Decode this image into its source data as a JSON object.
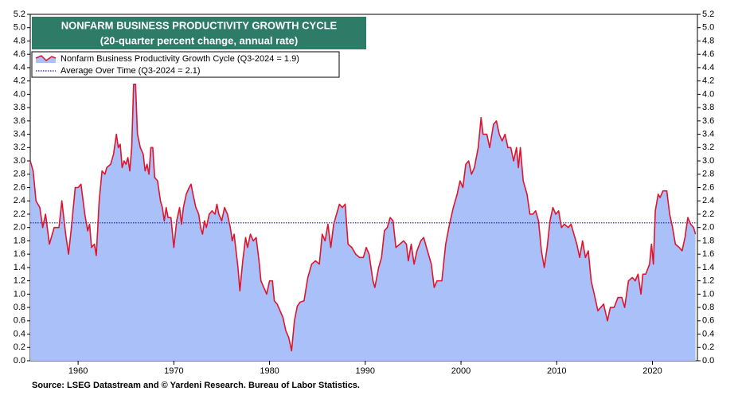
{
  "chart_data": {
    "type": "area",
    "title": "NONFARM BUSINESS PRODUCTIVITY GROWTH CYCLE",
    "subtitle": "(20-quarter percent change, annual rate)",
    "source": "Source: LSEG Datastream and © Yardeni Research. Bureau of Labor Statistics.",
    "x": [
      1955,
      1955.3,
      1955.6,
      1956,
      1956.3,
      1956.6,
      1957,
      1957.5,
      1958,
      1958.3,
      1958.7,
      1959,
      1959.3,
      1959.7,
      1960,
      1960.3,
      1960.7,
      1961,
      1961.2,
      1961.4,
      1961.7,
      1961.9,
      1962.2,
      1962.5,
      1962.8,
      1963,
      1963.4,
      1963.7,
      1964,
      1964.2,
      1964.4,
      1964.6,
      1964.8,
      1965,
      1965.2,
      1965.4,
      1965.6,
      1965.8,
      1966,
      1966.2,
      1966.5,
      1966.8,
      1967,
      1967.2,
      1967.4,
      1967.6,
      1967.8,
      1968,
      1968.3,
      1968.6,
      1968.8,
      1969,
      1969.2,
      1969.4,
      1969.7,
      1970,
      1970.3,
      1970.6,
      1970.8,
      1971,
      1971.3,
      1971.6,
      1971.8,
      1972,
      1972.3,
      1972.6,
      1972.8,
      1973,
      1973.2,
      1973.4,
      1973.7,
      1974,
      1974.3,
      1974.5,
      1974.7,
      1975,
      1975.3,
      1975.6,
      1975.9,
      1976.1,
      1976.3,
      1976.7,
      1976.9,
      1977.2,
      1977.5,
      1977.7,
      1978,
      1978.3,
      1978.6,
      1978.9,
      1979.1,
      1979.4,
      1979.7,
      1980,
      1980.3,
      1980.5,
      1980.8,
      1981.1,
      1981.4,
      1981.7,
      1982,
      1982.3,
      1982.6,
      1982.9,
      1983.2,
      1983.6,
      1984,
      1984.4,
      1984.8,
      1985.2,
      1985.5,
      1985.8,
      1986.1,
      1986.4,
      1986.7,
      1987,
      1987.3,
      1987.6,
      1987.9,
      1988.2,
      1988.6,
      1989,
      1989.4,
      1989.8,
      1990.1,
      1990.4,
      1990.8,
      1991,
      1991.4,
      1991.7,
      1992,
      1992.3,
      1992.6,
      1992.9,
      1993.2,
      1993.6,
      1994,
      1994.3,
      1994.5,
      1994.8,
      1995.1,
      1995.4,
      1995.8,
      1996.1,
      1996.5,
      1996.9,
      1997.2,
      1997.5,
      1998,
      1998.4,
      1998.8,
      1999.2,
      1999.6,
      1999.9,
      2000.2,
      2000.5,
      2000.8,
      2001.1,
      2001.4,
      2001.8,
      2002.1,
      2002.3,
      2002.7,
      2003,
      2003.4,
      2003.7,
      2004,
      2004.3,
      2004.6,
      2004.9,
      2005.2,
      2005.5,
      2005.8,
      2006,
      2006.2,
      2006.5,
      2006.9,
      2007.2,
      2007.5,
      2007.8,
      2008.1,
      2008.4,
      2008.7,
      2009,
      2009.3,
      2009.6,
      2009.9,
      2010.2,
      2010.5,
      2010.8,
      2011.2,
      2011.5,
      2011.8,
      2012.1,
      2012.4,
      2012.7,
      2013,
      2013.3,
      2013.6,
      2014,
      2014.3,
      2014.6,
      2014.9,
      2015.3,
      2015.6,
      2016,
      2016.4,
      2016.8,
      2017.1,
      2017.5,
      2017.9,
      2018.2,
      2018.5,
      2018.8,
      2019,
      2019.3,
      2019.7,
      2019.9,
      2020.1,
      2020.3,
      2020.6,
      2020.8,
      2021.1,
      2021.5,
      2021.8,
      2022.1,
      2022.4,
      2022.8,
      2023.1,
      2023.4,
      2023.7,
      2024,
      2024.3,
      2024.5
    ],
    "series": [
      {
        "name": "Nonfarm Business Productivity Growth Cycle (Q3-2024 = 1.9)",
        "color": "#e0142c",
        "fill": "#a9c0f9",
        "values": [
          3.0,
          2.85,
          2.4,
          2.3,
          2.0,
          2.2,
          1.75,
          2.0,
          2.0,
          2.4,
          1.9,
          1.6,
          2.0,
          2.6,
          2.6,
          2.65,
          2.2,
          1.95,
          2.05,
          1.7,
          1.75,
          1.58,
          2.4,
          2.85,
          2.8,
          2.9,
          2.95,
          3.1,
          3.4,
          3.2,
          3.25,
          2.9,
          3.0,
          2.95,
          3.05,
          2.85,
          3.2,
          4.15,
          4.15,
          3.4,
          3.2,
          3.1,
          2.85,
          2.95,
          2.8,
          3.2,
          3.2,
          2.75,
          2.7,
          2.4,
          2.3,
          2.1,
          2.3,
          2.15,
          2.15,
          1.7,
          2.1,
          2.3,
          2.05,
          2.3,
          2.5,
          2.6,
          2.65,
          2.5,
          2.3,
          2.2,
          2.0,
          1.9,
          2.1,
          2.0,
          2.2,
          2.25,
          2.2,
          2.35,
          2.2,
          2.1,
          2.3,
          2.2,
          2.0,
          1.8,
          1.9,
          1.4,
          1.05,
          1.5,
          1.85,
          1.7,
          1.9,
          1.8,
          1.85,
          1.5,
          1.2,
          1.1,
          1.0,
          1.2,
          1.2,
          0.9,
          0.85,
          0.75,
          0.65,
          0.45,
          0.35,
          0.15,
          0.6,
          0.82,
          0.88,
          0.9,
          1.25,
          1.45,
          1.5,
          1.45,
          1.9,
          1.8,
          2.05,
          1.7,
          2.05,
          2.2,
          2.35,
          2.3,
          2.35,
          1.75,
          1.7,
          1.6,
          1.55,
          1.55,
          1.7,
          1.6,
          1.2,
          1.1,
          1.4,
          1.55,
          1.95,
          2.0,
          2.15,
          2.1,
          1.7,
          1.75,
          1.8,
          1.75,
          1.5,
          1.75,
          1.45,
          1.65,
          1.8,
          1.85,
          1.65,
          1.45,
          1.1,
          1.2,
          1.2,
          1.75,
          2.05,
          2.3,
          2.5,
          2.7,
          2.6,
          2.95,
          3.0,
          2.8,
          2.9,
          3.2,
          3.65,
          3.4,
          3.4,
          3.2,
          3.55,
          3.6,
          3.4,
          3.3,
          3.4,
          3.2,
          3.2,
          3.0,
          3.2,
          2.9,
          3.2,
          2.7,
          2.5,
          2.2,
          2.2,
          2.25,
          2.1,
          1.65,
          1.4,
          1.7,
          2.1,
          2.3,
          2.2,
          2.25,
          2.0,
          2.05,
          2.0,
          2.05,
          1.9,
          1.75,
          1.55,
          1.8,
          1.55,
          1.65,
          1.2,
          0.95,
          0.75,
          0.8,
          0.85,
          0.6,
          0.8,
          0.8,
          0.95,
          0.95,
          0.8,
          1.2,
          1.25,
          1.2,
          1.3,
          1.0,
          1.3,
          1.3,
          1.45,
          1.75,
          1.45,
          2.25,
          2.5,
          2.45,
          2.55,
          2.55,
          2.2,
          2.0,
          1.75,
          1.7,
          1.65,
          1.85,
          2.15,
          2.05,
          2.0,
          1.9
        ]
      }
    ],
    "average": {
      "name": "Average Over Time (Q3-2024 = 2.1)",
      "color": "#1a1ab8",
      "value": 2.07
    },
    "xlim": [
      1955,
      2024.7
    ],
    "xticks": [
      1960,
      1970,
      1980,
      1990,
      2000,
      2010,
      2020
    ],
    "ylim": [
      0,
      5.2
    ],
    "yticks": [
      {
        "value": 0,
        "label": "0.0"
      },
      0.2,
      0.4,
      0.6,
      0.8,
      {
        "value": 1,
        "label": "1.0"
      },
      1.2,
      1.4,
      1.6,
      1.8,
      {
        "value": 2,
        "label": "2.0"
      },
      2.2,
      2.4,
      2.6,
      2.8,
      {
        "value": 3,
        "label": "3.0"
      },
      3.2,
      3.4,
      3.6,
      3.8,
      {
        "value": 4,
        "label": "4.0"
      },
      4.2,
      4.4,
      4.6,
      4.8,
      {
        "value": 5,
        "label": "5.0"
      },
      5.2
    ],
    "y2": true
  }
}
